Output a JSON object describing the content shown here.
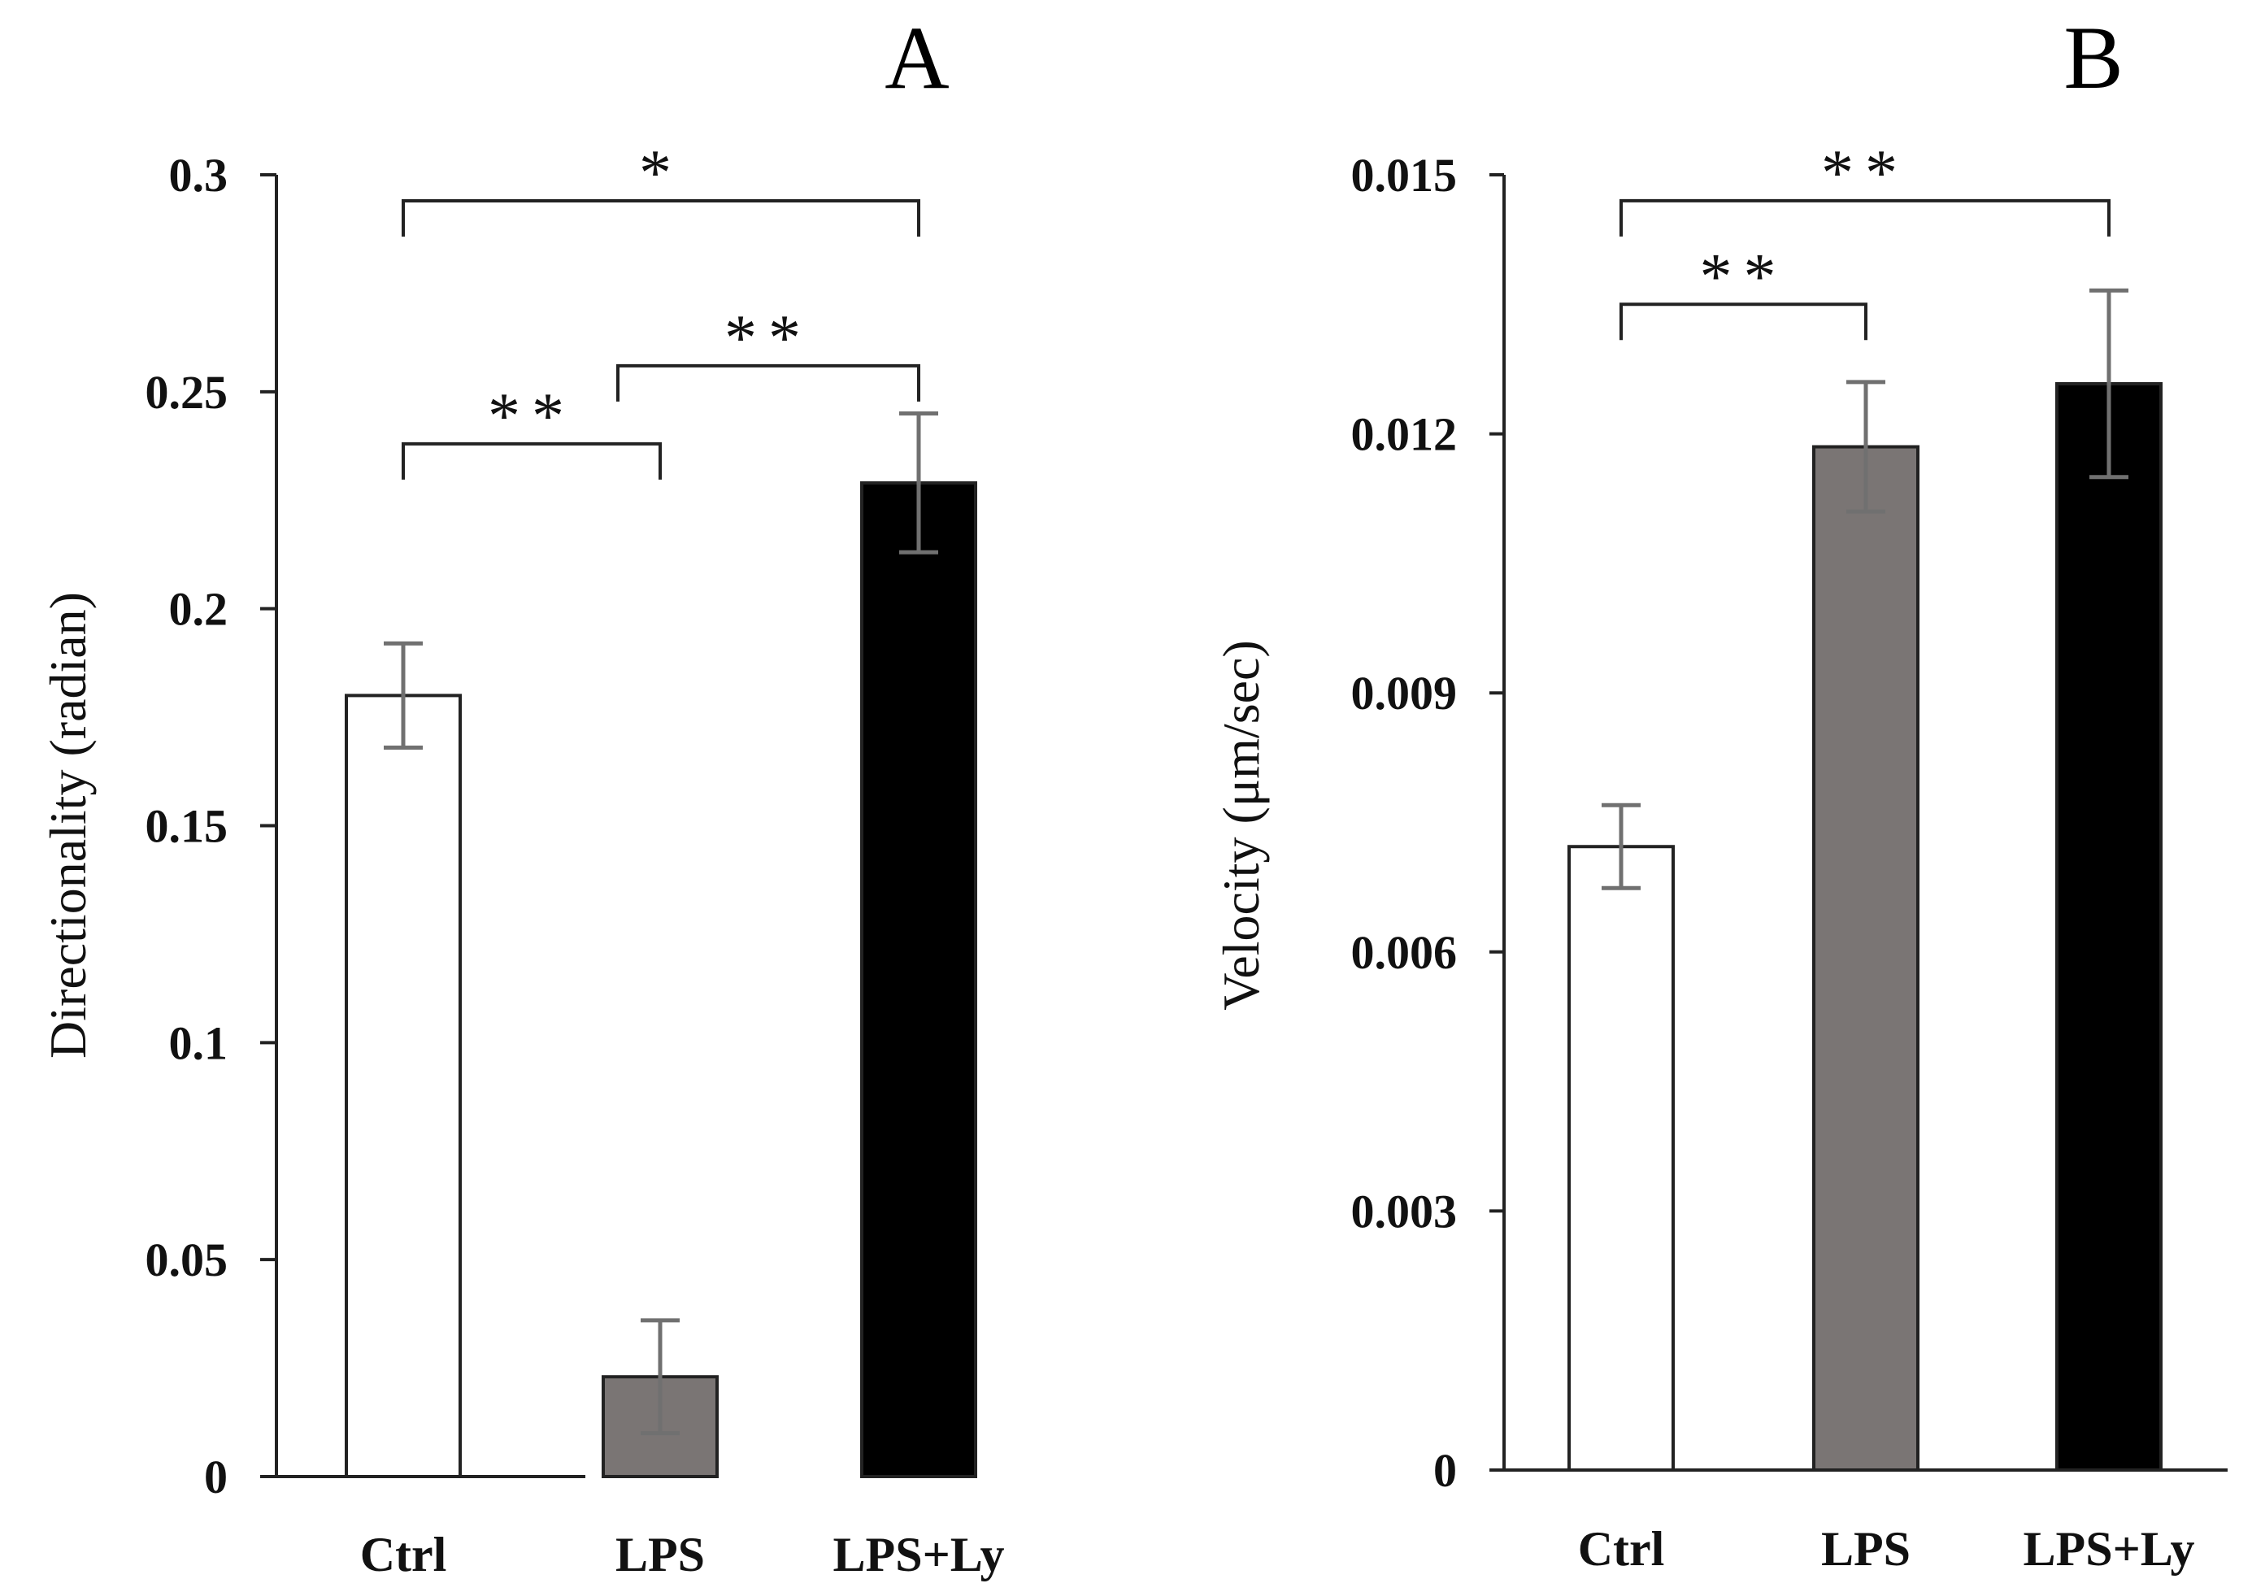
{
  "chart_data": [
    {
      "type": "bar",
      "panel_label": "A",
      "categories": [
        "Ctrl",
        "LPS",
        "LPS+Ly"
      ],
      "values": [
        0.18,
        0.023,
        0.229
      ],
      "errors": [
        0.012,
        0.013,
        0.016
      ],
      "bar_colors": [
        "#ffffff",
        "#7a7574",
        "#000000"
      ],
      "ylabel": "Directionality (radian)",
      "ylim": [
        0,
        0.3
      ],
      "yticks": [
        0,
        0.05,
        0.1,
        0.15,
        0.2,
        0.25,
        0.3
      ],
      "ytick_labels": [
        "0",
        "0.05",
        "0.1",
        "0.15",
        "0.2",
        "0.25",
        "0.3"
      ],
      "significance": [
        {
          "from": 0,
          "to": 1,
          "label": "**",
          "y": 0.238
        },
        {
          "from": 1,
          "to": 2,
          "label": "**",
          "y": 0.256
        },
        {
          "from": 0,
          "to": 2,
          "label": "*",
          "y": 0.294
        }
      ]
    },
    {
      "type": "bar",
      "panel_label": "B",
      "categories": [
        "Ctrl",
        "LPS",
        "LPS+Ly"
      ],
      "values": [
        0.00722,
        0.01185,
        0.01258
      ],
      "errors": [
        0.00048,
        0.00075,
        0.00108
      ],
      "bar_colors": [
        "#ffffff",
        "#7a7574",
        "#000000"
      ],
      "ylabel": "Velocity  (μm/sec)",
      "ylim": [
        0,
        0.015
      ],
      "yticks": [
        0,
        0.003,
        0.006,
        0.009,
        0.012,
        0.015
      ],
      "ytick_labels": [
        "0",
        "0.003",
        "0.006",
        "0.009",
        "0.012",
        "0.015"
      ],
      "significance": [
        {
          "from": 0,
          "to": 1,
          "label": "**",
          "y": 0.0135
        },
        {
          "from": 0,
          "to": 2,
          "label": "**",
          "y": 0.0147
        }
      ]
    }
  ]
}
